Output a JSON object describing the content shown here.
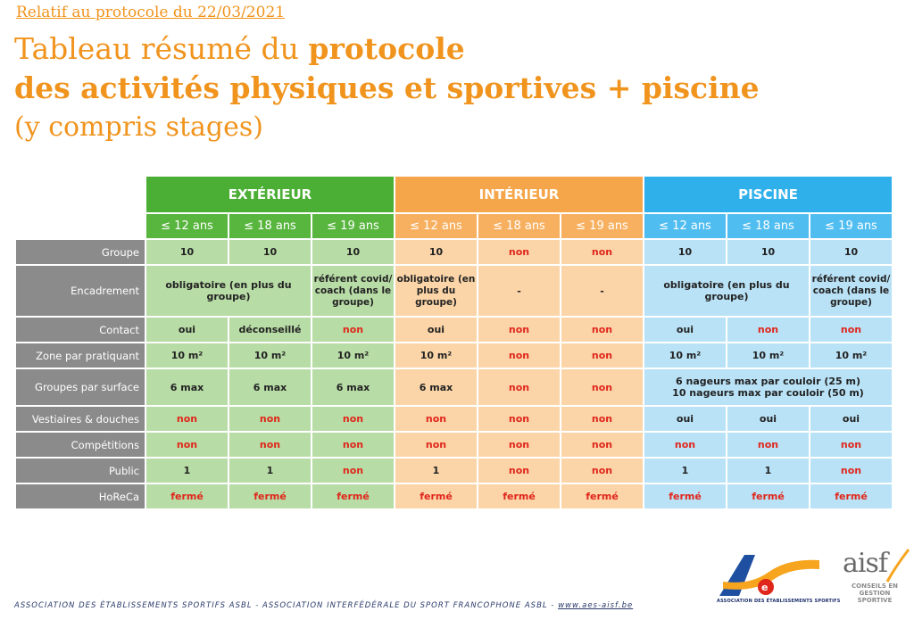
{
  "header": {
    "reference": "Relatif au protocole du 22/03/2021",
    "title_line1_plain": "Tableau résumé du ",
    "title_line1_bold": "protocole",
    "title_line2": "des activités physiques et sportives + piscine",
    "title_line3": "(y compris stages)"
  },
  "table": {
    "groups": [
      "EXTÉRIEUR",
      "INTÉRIEUR",
      "PISCINE"
    ],
    "ages": [
      "≤ 12 ans",
      "≤ 18 ans",
      "≤ 19 ans"
    ],
    "rows": {
      "groupe": {
        "label": "Groupe",
        "v": [
          "10",
          "10",
          "10",
          "10",
          "non",
          "non",
          "10",
          "10",
          "10"
        ]
      },
      "encadrement": {
        "label": "Encadrement",
        "ext_1_2": "obligatoire  (en plus du groupe)",
        "ext_3": "référent covid/ coach (dans le groupe)",
        "int_1": "obligatoire (en plus du groupe)",
        "int_2": "-",
        "int_3": "-",
        "pis_1_2": "obligatoire  (en plus du groupe)",
        "pis_3": "référent covid/ coach (dans le groupe)"
      },
      "contact": {
        "label": "Contact",
        "v": [
          "oui",
          "déconseillé",
          "non",
          "oui",
          "non",
          "non",
          "oui",
          "non",
          "non"
        ]
      },
      "zone": {
        "label": "Zone par pratiquant",
        "v": [
          "10 m²",
          "10 m²",
          "10 m²",
          "10 m²",
          "non",
          "non",
          "10 m²",
          "10 m²",
          "10 m²"
        ]
      },
      "groupes_surface": {
        "label": "Groupes par surface",
        "v": [
          "6 max",
          "6 max",
          "6 max",
          "6 max",
          "non",
          "non"
        ],
        "piscine_line1": "6 nageurs max par couloir (25 m)",
        "piscine_line2": "10 nageurs max par couloir (50 m)"
      },
      "vestiaires": {
        "label": "Vestiaires & douches",
        "v": [
          "non",
          "non",
          "non",
          "non",
          "non",
          "non",
          "oui",
          "oui",
          "oui"
        ]
      },
      "competitions": {
        "label": "Compétitions",
        "v": [
          "non",
          "non",
          "non",
          "non",
          "non",
          "non",
          "non",
          "non",
          "non"
        ]
      },
      "public": {
        "label": "Public",
        "v": [
          "1",
          "1",
          "non",
          "1",
          "non",
          "non",
          "1",
          "1",
          "non"
        ]
      },
      "horeca": {
        "label": "HoReCa",
        "v": [
          "fermé",
          "fermé",
          "fermé",
          "fermé",
          "fermé",
          "fermé",
          "fermé",
          "fermé",
          "fermé"
        ]
      }
    }
  },
  "footer": {
    "text": "ASSOCIATION DES ÉTABLISSEMENTS SPORTIFS ASBL - ASSOCIATION INTERFÉDÉRALE DU SPORT FRANCOPHONE ASBL - ",
    "link": "www.aes-aisf.be"
  },
  "logos": {
    "aes_caption": "ASSOCIATION DES ÉTABLISSEMENTS SPORTIFS",
    "aisf_word": "aisf",
    "aisf_caption_1": "CONSEILS EN",
    "aisf_caption_2": "GESTION SPORTIVE"
  },
  "colors": {
    "exterieur": "#4caf35",
    "interieur": "#f6a64a",
    "piscine": "#2fb0ea",
    "negative": "#e0261b",
    "title": "#f0941e"
  }
}
